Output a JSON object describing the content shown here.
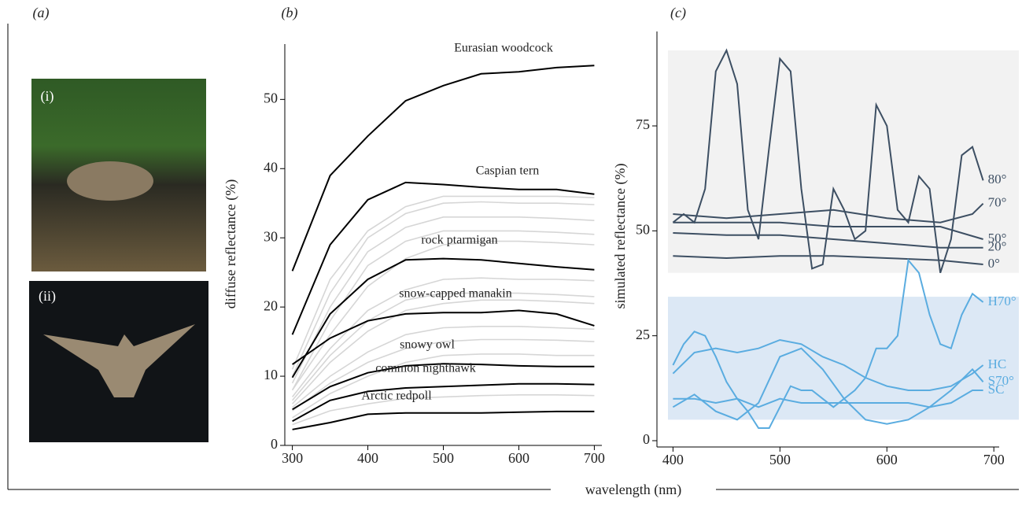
{
  "figure": {
    "panels": [
      "(a)",
      "(b)",
      "(c)"
    ],
    "photos": [
      "(i)",
      "(ii)"
    ],
    "xlabel": "wavelength (nm)"
  },
  "chart_data": [
    {
      "type": "line",
      "ylabel": "diffuse reflectance (%)",
      "xlim": [
        290,
        710
      ],
      "xticks": [
        300,
        400,
        500,
        600,
        700
      ],
      "ylim": [
        0,
        58
      ],
      "yticks": [
        0,
        10,
        20,
        30,
        40,
        50
      ],
      "x": [
        300,
        350,
        400,
        450,
        500,
        550,
        600,
        650,
        700
      ],
      "series": [
        {
          "color": "#d6d6d6",
          "values": [
            11,
            24,
            31,
            34.5,
            36,
            36,
            36,
            36,
            35.8
          ]
        },
        {
          "color": "#d6d6d6",
          "values": [
            10,
            22,
            30,
            33.5,
            35,
            35.2,
            35,
            35,
            34.8
          ]
        },
        {
          "color": "#d6d6d6",
          "values": [
            9,
            20,
            28,
            31.5,
            33,
            33,
            33,
            32.8,
            32.5
          ]
        },
        {
          "color": "#d6d6d6",
          "values": [
            8,
            18,
            26,
            29.5,
            31,
            31,
            31,
            30.8,
            30.5
          ]
        },
        {
          "color": "#d6d6d6",
          "values": [
            8,
            16,
            23,
            27,
            29,
            29.5,
            29.5,
            29.3,
            29
          ]
        },
        {
          "color": "#d6d6d6",
          "values": [
            7,
            14,
            19.5,
            22.5,
            24,
            24.2,
            24,
            24,
            23.8
          ]
        },
        {
          "color": "#d6d6d6",
          "values": [
            6.5,
            13,
            18,
            21,
            22,
            22,
            22,
            21.8,
            21.5
          ]
        },
        {
          "color": "#d6d6d6",
          "values": [
            6,
            12,
            16.5,
            19.5,
            20.5,
            21,
            21,
            20.8,
            20.5
          ]
        },
        {
          "color": "#d6d6d6",
          "values": [
            5.5,
            10,
            13.5,
            16,
            17,
            17.2,
            17.2,
            17,
            16.8
          ]
        },
        {
          "color": "#d6d6d6",
          "values": [
            5,
            9,
            12,
            14,
            15,
            15.3,
            15.3,
            15.2,
            15
          ]
        },
        {
          "color": "#d6d6d6",
          "values": [
            4,
            7.5,
            10,
            12,
            13,
            13.2,
            13.2,
            13,
            13
          ]
        },
        {
          "color": "#d6d6d6",
          "values": [
            3,
            5,
            6,
            6.8,
            7,
            7.2,
            7.3,
            7.3,
            7.2
          ]
        },
        {
          "name": "Eurasian woodcock",
          "color": "#000000",
          "values": [
            25.2,
            39,
            44.7,
            49.8,
            52,
            53.7,
            54,
            54.6,
            54.9
          ]
        },
        {
          "name": "Caspian tern",
          "color": "#000000",
          "values": [
            16,
            29,
            35.5,
            38,
            37.7,
            37.3,
            37,
            37,
            36.3
          ]
        },
        {
          "name": "rock ptarmigan",
          "color": "#000000",
          "values": [
            9.8,
            19,
            24,
            26.8,
            27,
            26.8,
            26.3,
            25.8,
            25.4
          ]
        },
        {
          "name": "snow-capped manakin",
          "color": "#000000",
          "values": [
            11.7,
            15.5,
            18,
            19,
            19.2,
            19.2,
            19.5,
            19,
            17.3
          ]
        },
        {
          "name": "snowy owl",
          "color": "#000000",
          "values": [
            5.2,
            8.5,
            10.5,
            11.5,
            11.8,
            11.7,
            11.5,
            11.4,
            11.4
          ]
        },
        {
          "name": "common nighthawk",
          "color": "#000000",
          "values": [
            3.5,
            6.5,
            7.8,
            8.3,
            8.5,
            8.7,
            8.9,
            8.9,
            8.8
          ]
        },
        {
          "name": "Arctic redpoll",
          "color": "#000000",
          "values": [
            2.3,
            3.3,
            4.5,
            4.7,
            4.7,
            4.7,
            4.8,
            4.9,
            4.9
          ]
        }
      ]
    },
    {
      "type": "line",
      "ylabel": "simulated reflectance (%)",
      "xlim": [
        385,
        705
      ],
      "xticks": [
        400,
        500,
        600,
        700
      ],
      "ylim": [
        -1.5,
        97.5
      ],
      "yticks": [
        0,
        25,
        50,
        75
      ],
      "shaded_regions": [
        {
          "y": [
            40,
            93
          ],
          "color": "#f2f2f2"
        },
        {
          "y": [
            5,
            34.3
          ],
          "color": "#dce8f5"
        }
      ],
      "series": [
        {
          "name": "80°",
          "color": "#3d4f63",
          "x": [
            400,
            410,
            420,
            430,
            440,
            450,
            460,
            470,
            480,
            490,
            500,
            510,
            520,
            530,
            540,
            550,
            560,
            570,
            580,
            590,
            600,
            610,
            620,
            630,
            640,
            650,
            660,
            670,
            680,
            690
          ],
          "values": [
            52,
            54,
            52,
            60,
            88,
            93,
            85,
            55,
            48,
            70,
            91,
            88,
            60,
            41,
            42,
            60,
            55,
            48,
            50,
            80,
            75,
            55,
            52,
            63,
            60,
            40,
            48,
            68,
            70,
            62
          ]
        },
        {
          "name": "70°",
          "color": "#3d4f63",
          "x": [
            400,
            450,
            500,
            550,
            600,
            650,
            680,
            690
          ],
          "values": [
            54,
            53,
            54,
            55,
            53,
            52,
            54,
            56.5
          ]
        },
        {
          "name": "50°",
          "color": "#3d4f63",
          "x": [
            400,
            450,
            500,
            550,
            600,
            650,
            690
          ],
          "values": [
            52,
            52,
            52,
            51,
            51,
            51,
            48
          ]
        },
        {
          "name": "20°",
          "color": "#3d4f63",
          "x": [
            400,
            450,
            500,
            550,
            600,
            650,
            690
          ],
          "values": [
            49.5,
            49,
            49,
            48,
            47,
            46,
            46
          ]
        },
        {
          "name": "0°",
          "color": "#3d4f63",
          "x": [
            400,
            450,
            500,
            550,
            600,
            650,
            690
          ],
          "values": [
            44,
            43.5,
            44,
            44,
            43.5,
            43,
            42
          ]
        },
        {
          "name": "H70°",
          "color": "#5aace0",
          "x": [
            400,
            410,
            420,
            430,
            440,
            450,
            460,
            470,
            480,
            490,
            500,
            510,
            520,
            530,
            540,
            550,
            560,
            570,
            580,
            590,
            600,
            610,
            620,
            630,
            640,
            650,
            660,
            670,
            680,
            690
          ],
          "values": [
            18,
            23,
            26,
            25,
            20,
            14,
            10,
            7,
            3,
            3,
            8,
            13,
            12,
            12,
            10,
            8,
            10,
            12,
            15,
            22,
            22,
            25,
            43,
            40,
            30,
            23,
            22,
            30,
            35,
            33
          ]
        },
        {
          "name": "HC",
          "color": "#5aace0",
          "x": [
            400,
            420,
            440,
            460,
            480,
            500,
            520,
            540,
            560,
            580,
            600,
            620,
            640,
            660,
            680,
            690
          ],
          "values": [
            16,
            21,
            22,
            21,
            22,
            24,
            23,
            20,
            18,
            15,
            13,
            12,
            12,
            13,
            16,
            18
          ]
        },
        {
          "name": "S70°",
          "color": "#5aace0",
          "x": [
            400,
            420,
            440,
            460,
            480,
            500,
            520,
            540,
            560,
            580,
            600,
            620,
            640,
            660,
            680,
            690
          ],
          "values": [
            8,
            11,
            7,
            5,
            9,
            20,
            22,
            17,
            10,
            5,
            4,
            5,
            8,
            12,
            17,
            14
          ]
        },
        {
          "name": "SC",
          "color": "#5aace0",
          "x": [
            400,
            420,
            440,
            460,
            480,
            500,
            520,
            540,
            560,
            580,
            600,
            620,
            640,
            660,
            680,
            690
          ],
          "values": [
            10,
            10,
            9,
            10,
            8,
            10,
            9,
            9,
            9,
            9,
            9,
            9,
            8,
            9,
            12,
            12
          ]
        }
      ]
    }
  ]
}
